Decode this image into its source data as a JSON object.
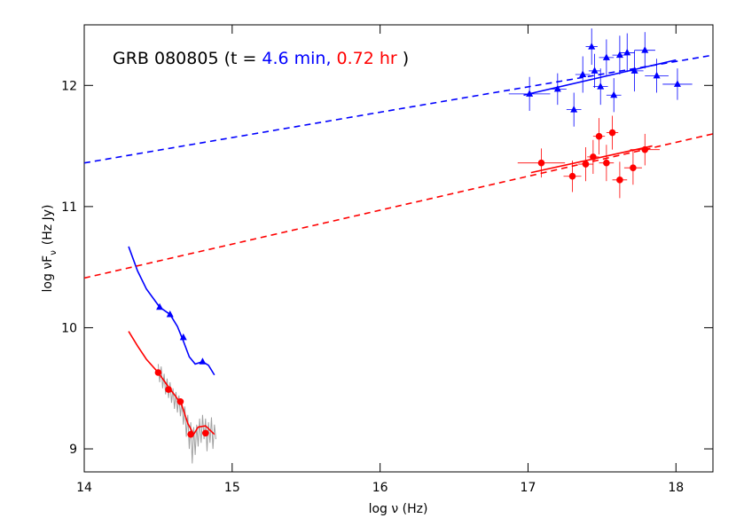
{
  "chart_data": {
    "type": "scatter",
    "annotations": [
      {
        "text": "GRB 080805 (t =",
        "color": "#000000"
      },
      {
        "text": "4.6 min,",
        "color": "#0000ff"
      },
      {
        "text": "0.72 hr",
        "color": "#ff0000"
      },
      {
        "text": ")",
        "color": "#000000"
      }
    ],
    "xlabel": "log ν (Hz)",
    "ylabel": "log νF",
    "ylabel_sub": "ν",
    "ylabel_unit": "(Hz Jy)",
    "xlim": [
      14,
      18.25
    ],
    "ylim": [
      8.81,
      12.5
    ],
    "xticks": [
      14,
      15,
      16,
      17,
      18
    ],
    "yticks": [
      9,
      10,
      11,
      12
    ],
    "series": [
      {
        "color": "#a0a0a0",
        "line": "solid",
        "marker": "none",
        "x": [
          14.5,
          14.51,
          14.52,
          14.53,
          14.54,
          14.55,
          14.56,
          14.57,
          14.58,
          14.59,
          14.6,
          14.61,
          14.62,
          14.63,
          14.64,
          14.65,
          14.66,
          14.67,
          14.68,
          14.69,
          14.7,
          14.71,
          14.72,
          14.73,
          14.74,
          14.75,
          14.76,
          14.77,
          14.78,
          14.79,
          14.8,
          14.81,
          14.82,
          14.83,
          14.84,
          14.85,
          14.86,
          14.87,
          14.88,
          14.89
        ],
        "y": [
          9.7,
          9.55,
          9.68,
          9.5,
          9.62,
          9.45,
          9.58,
          9.42,
          9.55,
          9.38,
          9.5,
          9.33,
          9.47,
          9.3,
          9.44,
          9.27,
          9.4,
          9.2,
          9.35,
          9.1,
          9.28,
          9.0,
          9.22,
          8.88,
          9.18,
          8.95,
          9.2,
          9.02,
          9.25,
          9.05,
          9.28,
          9.08,
          9.25,
          8.98,
          9.22,
          9.05,
          9.26,
          9.0,
          9.2,
          9.08
        ]
      },
      {
        "color": "#0000ff",
        "line": "solid",
        "marker": "none",
        "x": [
          14.3,
          14.36,
          14.42,
          14.51,
          14.58,
          14.63,
          14.67,
          14.71,
          14.75,
          14.8,
          14.84,
          14.88
        ],
        "y": [
          10.67,
          10.47,
          10.32,
          10.17,
          10.11,
          10.01,
          9.89,
          9.76,
          9.7,
          9.72,
          9.69,
          9.61
        ]
      },
      {
        "color": "#ff0000",
        "line": "solid",
        "marker": "none",
        "x": [
          14.3,
          14.36,
          14.42,
          14.5,
          14.57,
          14.62,
          14.66,
          14.7,
          14.74,
          14.77,
          14.82,
          14.88
        ],
        "y": [
          9.97,
          9.85,
          9.74,
          9.63,
          9.51,
          9.43,
          9.36,
          9.21,
          9.12,
          9.18,
          9.19,
          9.12
        ]
      },
      {
        "color": "#0000ff",
        "line": "dashed",
        "marker": "none",
        "x": [
          14,
          18.25
        ],
        "y": [
          11.36,
          12.25
        ]
      },
      {
        "color": "#ff0000",
        "line": "dashed",
        "marker": "none",
        "x": [
          14,
          18.25
        ],
        "y": [
          10.41,
          11.6
        ]
      },
      {
        "color": "#0000ff",
        "line": "solid",
        "marker": "none",
        "x": [
          16.97,
          18.0
        ],
        "y": [
          11.92,
          12.21
        ]
      },
      {
        "color": "#ff0000",
        "line": "solid",
        "marker": "none",
        "x": [
          17.02,
          17.84
        ],
        "y": [
          11.28,
          11.5
        ]
      },
      {
        "color": "#0000ff",
        "line": "none",
        "marker": "triangle",
        "x": [
          14.51,
          14.58,
          14.67,
          14.8
        ],
        "y": [
          10.17,
          10.11,
          9.92,
          9.72
        ]
      },
      {
        "color": "#ff0000",
        "line": "none",
        "marker": "circle",
        "x": [
          14.5,
          14.57,
          14.65,
          14.72,
          14.82
        ],
        "y": [
          9.63,
          9.49,
          9.39,
          9.12,
          9.13
        ]
      },
      {
        "color": "#0000ff",
        "line": "none",
        "marker": "triangle",
        "x": [
          17.01,
          17.2,
          17.31,
          17.37,
          17.43,
          17.45,
          17.49,
          17.53,
          17.58,
          17.62,
          17.67,
          17.72,
          17.79,
          17.87,
          18.01
        ],
        "y": [
          11.93,
          11.97,
          11.8,
          12.09,
          12.32,
          12.12,
          11.99,
          12.23,
          11.92,
          12.25,
          12.27,
          12.12,
          12.29,
          12.08,
          12.01
        ],
        "xerr": [
          0.14,
          0.06,
          0.05,
          0.05,
          0.04,
          0.04,
          0.05,
          0.05,
          0.05,
          0.05,
          0.05,
          0.06,
          0.07,
          0.08,
          0.1
        ],
        "yerr": [
          0.14,
          0.13,
          0.14,
          0.15,
          0.15,
          0.14,
          0.15,
          0.15,
          0.14,
          0.16,
          0.16,
          0.17,
          0.15,
          0.14,
          0.13
        ]
      },
      {
        "color": "#ff0000",
        "line": "none",
        "marker": "circle",
        "x": [
          17.09,
          17.3,
          17.39,
          17.44,
          17.48,
          17.53,
          17.57,
          17.62,
          17.71,
          17.79
        ],
        "y": [
          11.36,
          11.25,
          11.35,
          11.41,
          11.58,
          11.36,
          11.61,
          11.22,
          11.32,
          11.47
        ],
        "xerr": [
          0.16,
          0.06,
          0.05,
          0.04,
          0.04,
          0.05,
          0.04,
          0.05,
          0.06,
          0.1
        ],
        "yerr": [
          0.12,
          0.13,
          0.14,
          0.14,
          0.15,
          0.15,
          0.14,
          0.15,
          0.14,
          0.13
        ]
      }
    ]
  }
}
